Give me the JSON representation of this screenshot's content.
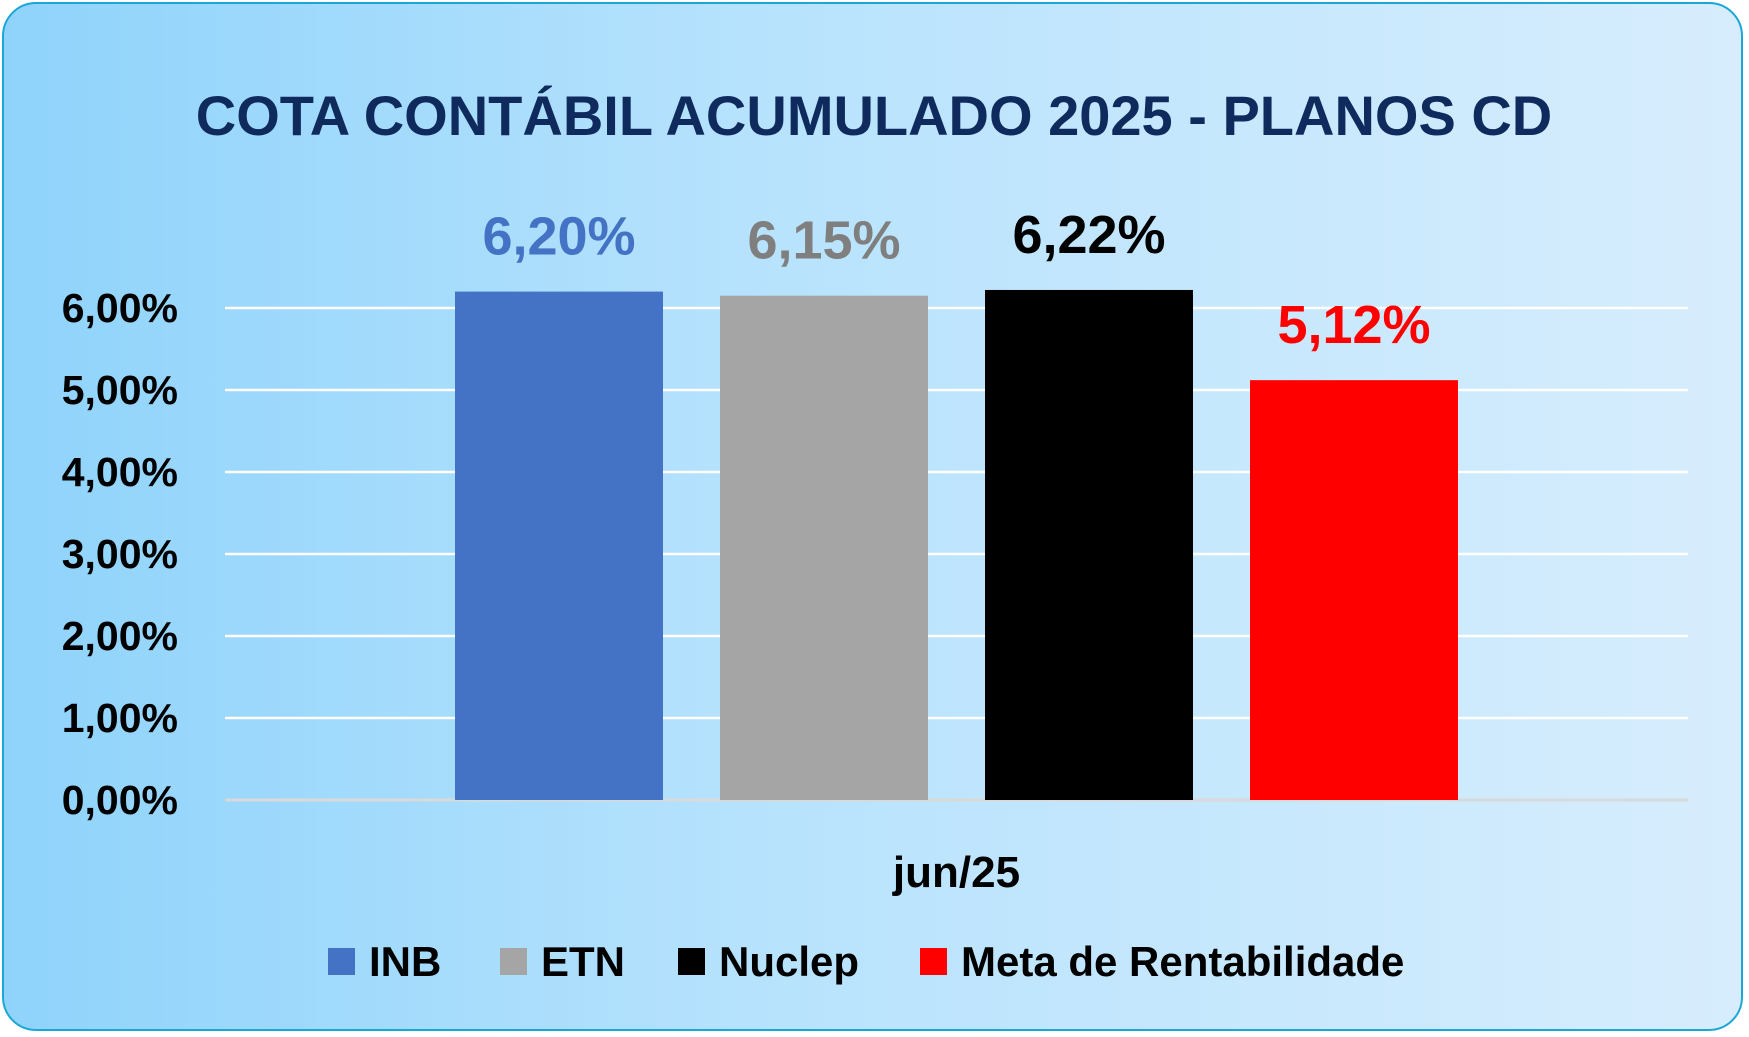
{
  "chart_data": {
    "type": "bar",
    "title": "COTA CONTÁBIL ACUMULADO 2025 - PLANOS CD",
    "categories": [
      "jun/25"
    ],
    "series": [
      {
        "name": "INB",
        "values": [
          6.2
        ],
        "label": "6,20%",
        "color": "#4472c4",
        "label_color": "#4472c4"
      },
      {
        "name": "ETN",
        "values": [
          6.15
        ],
        "label": "6,15%",
        "color": "#a5a5a5",
        "label_color": "#7f7f7f"
      },
      {
        "name": "Nuclep",
        "values": [
          6.22
        ],
        "label": "6,22%",
        "color": "#000000",
        "label_color": "#000000"
      },
      {
        "name": "Meta de Rentabilidade",
        "values": [
          5.12
        ],
        "label": "5,12%",
        "color": "#ff0000",
        "label_color": "#ff0000"
      }
    ],
    "ylim": [
      0,
      6
    ],
    "yticks": [
      {
        "value": 0,
        "label": "0,00%"
      },
      {
        "value": 1,
        "label": "1,00%"
      },
      {
        "value": 2,
        "label": "2,00%"
      },
      {
        "value": 3,
        "label": "3,00%"
      },
      {
        "value": 4,
        "label": "4,00%"
      },
      {
        "value": 5,
        "label": "5,00%"
      },
      {
        "value": 6,
        "label": "6,00%"
      }
    ],
    "grid": true,
    "legend_position": "bottom",
    "xlabel": "",
    "ylabel": ""
  }
}
